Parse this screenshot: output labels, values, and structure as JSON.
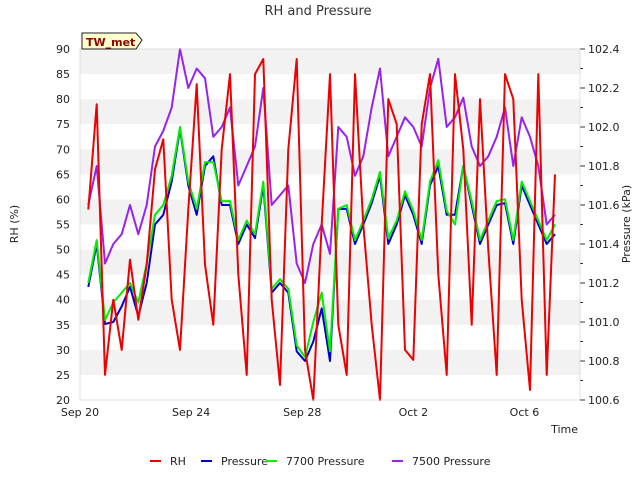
{
  "chart_data": {
    "type": "line",
    "title": "RH and Pressure",
    "badge": "TW_met",
    "xlabel": "Time",
    "ylabel_left": "RH (%)",
    "ylabel_right": "Pressure (kPa)",
    "x_ticks": [
      "Sep 20",
      "Sep 24",
      "Sep 28",
      "Oct 2",
      "Oct 6"
    ],
    "x_tick_days": [
      0,
      4,
      8,
      12,
      16
    ],
    "xlim_days": [
      0,
      18
    ],
    "ylim_left": [
      20,
      90
    ],
    "y_ticks_left": [
      "20",
      "25",
      "30",
      "35",
      "40",
      "45",
      "50",
      "55",
      "60",
      "65",
      "70",
      "75",
      "80",
      "85",
      "90"
    ],
    "ylim_right": [
      100.6,
      102.4
    ],
    "y_ticks_right": [
      "100.6",
      "100.8",
      "101.0",
      "101.2",
      "101.4",
      "101.6",
      "101.8",
      "102.0",
      "102.2",
      "102.4"
    ],
    "grid": "horizontal bands",
    "legend_position": "bottom",
    "x_days": [
      0.3,
      0.6,
      0.9,
      1.2,
      1.5,
      1.8,
      2.1,
      2.4,
      2.7,
      3.0,
      3.3,
      3.6,
      3.9,
      4.2,
      4.5,
      4.8,
      5.1,
      5.4,
      5.7,
      6.0,
      6.3,
      6.6,
      6.9,
      7.2,
      7.5,
      7.8,
      8.1,
      8.4,
      8.7,
      9.0,
      9.3,
      9.6,
      9.9,
      10.2,
      10.5,
      10.8,
      11.1,
      11.4,
      11.7,
      12.0,
      12.3,
      12.6,
      12.9,
      13.2,
      13.5,
      13.8,
      14.1,
      14.4,
      14.7,
      15.0,
      15.3,
      15.6,
      15.9,
      16.2,
      16.5,
      16.8,
      17.1
    ],
    "series": [
      {
        "name": "RH",
        "color": "#ee0000",
        "axis": "left",
        "values": [
          58,
          79,
          25,
          40,
          30,
          48,
          36,
          47,
          66,
          72,
          40,
          30,
          58,
          83,
          47,
          35,
          70,
          85,
          45,
          25,
          85,
          88,
          40,
          23,
          70,
          88,
          30,
          20,
          55,
          85,
          35,
          25,
          85,
          55,
          35,
          20,
          80,
          75,
          30,
          28,
          75,
          85,
          45,
          25,
          85,
          70,
          35,
          80,
          50,
          25,
          85,
          80,
          40,
          22,
          85,
          25,
          65
        ]
      },
      {
        "name": "Pressure",
        "color": "#0000cc",
        "axis": "right",
        "values": [
          101.18,
          101.4,
          100.99,
          101.0,
          101.08,
          101.18,
          101.03,
          101.2,
          101.5,
          101.55,
          101.72,
          101.99,
          101.7,
          101.55,
          101.8,
          101.85,
          101.6,
          101.6,
          101.4,
          101.5,
          101.43,
          101.7,
          101.15,
          101.2,
          101.15,
          100.85,
          100.8,
          100.9,
          101.07,
          100.8,
          101.58,
          101.58,
          101.4,
          101.5,
          101.61,
          101.75,
          101.4,
          101.5,
          101.65,
          101.55,
          101.4,
          101.7,
          101.8,
          101.55,
          101.55,
          101.8,
          101.6,
          101.4,
          101.5,
          101.6,
          101.61,
          101.4,
          101.7,
          101.6,
          101.5,
          101.4,
          101.45
        ]
      },
      {
        "name": "7700 Pressure",
        "color": "#00ee00",
        "axis": "right",
        "values": [
          101.2,
          101.42,
          101.01,
          101.1,
          101.15,
          101.2,
          101.1,
          101.3,
          101.55,
          101.6,
          101.75,
          102.0,
          101.72,
          101.58,
          101.82,
          101.82,
          101.62,
          101.62,
          101.42,
          101.52,
          101.45,
          101.72,
          101.17,
          101.22,
          101.17,
          100.88,
          100.82,
          101.0,
          101.15,
          100.85,
          101.58,
          101.6,
          101.42,
          101.52,
          101.63,
          101.77,
          101.43,
          101.52,
          101.67,
          101.57,
          101.42,
          101.72,
          101.83,
          101.57,
          101.5,
          101.8,
          101.62,
          101.42,
          101.52,
          101.62,
          101.63,
          101.42,
          101.72,
          101.62,
          101.52,
          101.42,
          101.5
        ]
      },
      {
        "name": "7500 Pressure",
        "color": "#9922ee",
        "axis": "right",
        "values": [
          101.6,
          101.8,
          101.3,
          101.4,
          101.45,
          101.6,
          101.45,
          101.6,
          101.9,
          101.98,
          102.1,
          102.4,
          102.2,
          102.3,
          102.25,
          101.95,
          102.0,
          102.1,
          101.7,
          101.8,
          101.9,
          102.2,
          101.6,
          101.65,
          101.7,
          101.3,
          101.2,
          101.4,
          101.5,
          101.35,
          102.0,
          101.95,
          101.75,
          101.85,
          102.1,
          102.3,
          101.85,
          101.95,
          102.05,
          102.0,
          101.9,
          102.2,
          102.35,
          102.0,
          102.05,
          102.15,
          101.9,
          101.8,
          101.85,
          101.95,
          102.1,
          101.8,
          102.05,
          101.95,
          101.8,
          101.5,
          101.55
        ]
      }
    ]
  }
}
